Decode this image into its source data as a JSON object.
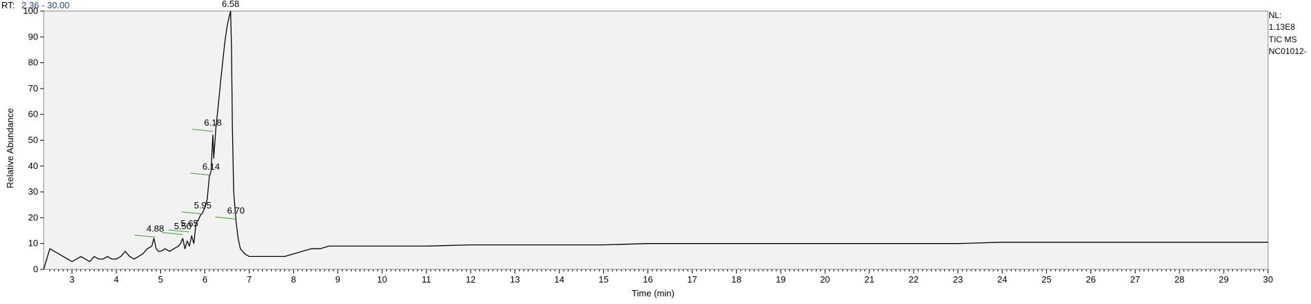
{
  "header": {
    "rt_prefix": "RT:",
    "rt_range": "2.36 - 30.00"
  },
  "info": {
    "nl_label": "NL:",
    "nl_value": "1.13E8",
    "scan_filter": "TIC  MS",
    "sample": "NC01012-"
  },
  "chart_data": {
    "type": "line",
    "title": "",
    "xlabel": "Time (min)",
    "ylabel": "Relative Abundance",
    "xlim": [
      2.36,
      30.0
    ],
    "ylim": [
      0,
      100
    ],
    "x_ticks": [
      3,
      4,
      5,
      6,
      7,
      8,
      9,
      10,
      11,
      12,
      13,
      14,
      15,
      16,
      17,
      18,
      19,
      20,
      21,
      22,
      23,
      24,
      25,
      26,
      27,
      28,
      29,
      30
    ],
    "y_ticks": [
      0,
      10,
      20,
      30,
      40,
      50,
      60,
      70,
      80,
      90,
      100
    ],
    "grid": false,
    "colors": {
      "trace": "#000000",
      "background": "#f2f2f2",
      "peak_marker": "#3a9a3a",
      "rt_range": "#1f3fa8"
    },
    "series": [
      {
        "x": [
          2.36,
          2.5,
          2.6,
          2.7,
          2.8,
          2.9,
          3.0,
          3.1,
          3.2,
          3.3,
          3.4,
          3.5,
          3.6,
          3.7,
          3.8,
          3.9,
          4.0,
          4.1,
          4.2,
          4.3,
          4.4,
          4.5,
          4.6,
          4.7,
          4.8,
          4.85,
          4.9,
          4.95,
          5.0,
          5.1,
          5.2,
          5.3,
          5.4,
          5.45,
          5.5,
          5.55,
          5.6,
          5.65,
          5.7,
          5.75,
          5.8,
          5.85,
          5.9,
          5.95,
          6.0,
          6.05,
          6.1,
          6.14,
          6.16,
          6.18,
          6.2,
          6.25,
          6.3,
          6.35,
          6.4,
          6.45,
          6.5,
          6.55,
          6.58,
          6.6,
          6.62,
          6.65,
          6.7,
          6.75,
          6.8,
          6.9,
          7.0,
          7.2,
          7.4,
          7.6,
          7.8,
          8.0,
          8.2,
          8.4,
          8.6,
          8.8,
          9.0,
          10.0,
          11.0,
          12.0,
          13.0,
          14.0,
          15.0,
          16.0,
          17.0,
          18.0,
          19.0,
          20.0,
          21.0,
          22.0,
          23.0,
          24.0,
          25.0,
          26.0,
          27.0,
          28.0,
          29.0,
          30.0
        ],
        "y": [
          0,
          8,
          7,
          6,
          5,
          4,
          3,
          4,
          5,
          4,
          3,
          5,
          4,
          4,
          5,
          4,
          4,
          5,
          7,
          5,
          4,
          5,
          6,
          8,
          9,
          12,
          8,
          7,
          7,
          8,
          7,
          8,
          9,
          10,
          12,
          8,
          11,
          9,
          13,
          10,
          18,
          19,
          21,
          22,
          24,
          27,
          36,
          38,
          46,
          52,
          43,
          55,
          63,
          72,
          80,
          88,
          94,
          98,
          100,
          86,
          55,
          30,
          19,
          12,
          8,
          6,
          5,
          5,
          5,
          5,
          5,
          6,
          7,
          8,
          8,
          9,
          9,
          9,
          9,
          9.5,
          9.5,
          9.5,
          9.5,
          10,
          10,
          10,
          10,
          10,
          10,
          10,
          10,
          10.5,
          10.5,
          10.5,
          10.5,
          10.5,
          10.5,
          10.5
        ]
      }
    ],
    "peak_labels": [
      {
        "rt": "4.88",
        "x": 4.88,
        "y": 13
      },
      {
        "rt": "5.50",
        "x": 5.5,
        "y": 14
      },
      {
        "rt": "5.65",
        "x": 5.65,
        "y": 15
      },
      {
        "rt": "5.95",
        "x": 5.95,
        "y": 22
      },
      {
        "rt": "6.14",
        "x": 6.14,
        "y": 37
      },
      {
        "rt": "6.18",
        "x": 6.18,
        "y": 54
      },
      {
        "rt": "6.58",
        "x": 6.58,
        "y": 100
      },
      {
        "rt": "6.70",
        "x": 6.7,
        "y": 20
      }
    ]
  }
}
